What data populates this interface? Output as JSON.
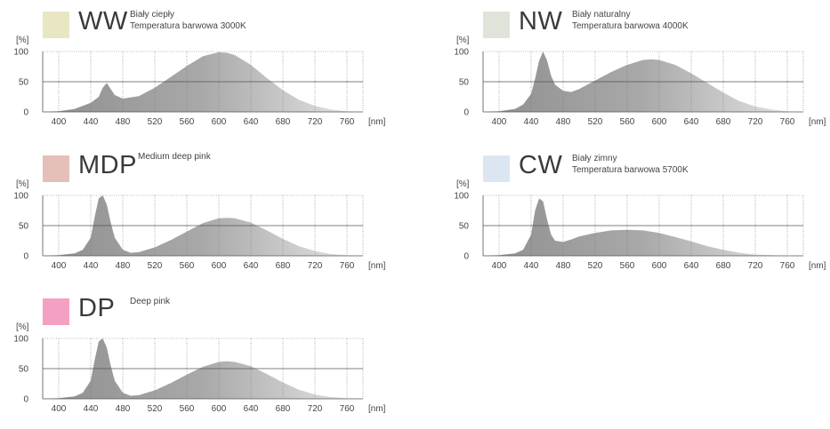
{
  "chart_data": [
    {
      "type": "area",
      "code": "WW",
      "description": [
        "Biały ciepły",
        "Temperatura barwowa 3000K"
      ],
      "swatch_color": "#e9e6c4",
      "ylabel": "[%]",
      "xlabel": "[nm]",
      "ylim": [
        0,
        100
      ],
      "xlim": [
        380,
        780
      ],
      "x_ticks": [
        400,
        440,
        480,
        520,
        560,
        600,
        640,
        680,
        720,
        760
      ],
      "y_ticks": [
        0,
        50,
        100
      ],
      "x": [
        380,
        400,
        420,
        440,
        450,
        455,
        460,
        465,
        470,
        480,
        500,
        520,
        540,
        560,
        580,
        600,
        610,
        620,
        640,
        660,
        680,
        700,
        720,
        740,
        760,
        780
      ],
      "y": [
        0,
        1,
        5,
        15,
        25,
        40,
        48,
        38,
        28,
        22,
        26,
        40,
        58,
        76,
        92,
        99,
        98,
        94,
        78,
        56,
        36,
        20,
        10,
        4,
        1,
        0
      ]
    },
    {
      "type": "area",
      "code": "NW",
      "description": [
        "Biały naturalny",
        "Temperatura barwowa 4000K"
      ],
      "swatch_color": "#e0e3d9",
      "ylabel": "[%]",
      "xlabel": "[nm]",
      "ylim": [
        0,
        100
      ],
      "xlim": [
        380,
        780
      ],
      "x_ticks": [
        400,
        440,
        480,
        520,
        560,
        600,
        640,
        680,
        720,
        760
      ],
      "y_ticks": [
        0,
        50,
        100
      ],
      "x": [
        380,
        400,
        420,
        430,
        440,
        445,
        450,
        455,
        460,
        465,
        470,
        480,
        490,
        500,
        520,
        540,
        560,
        580,
        590,
        600,
        620,
        640,
        660,
        680,
        700,
        720,
        740,
        760,
        780
      ],
      "y": [
        0,
        1,
        5,
        12,
        30,
        55,
        85,
        100,
        85,
        60,
        45,
        35,
        33,
        38,
        52,
        66,
        78,
        86,
        87,
        86,
        78,
        64,
        48,
        32,
        18,
        9,
        4,
        1,
        0
      ]
    },
    {
      "type": "area",
      "code": "MDP",
      "description": [
        "Medium deep pink"
      ],
      "swatch_color": "#e5bfba",
      "ylabel": "[%]",
      "xlabel": "[nm]",
      "ylim": [
        0,
        100
      ],
      "xlim": [
        380,
        780
      ],
      "x_ticks": [
        400,
        440,
        480,
        520,
        560,
        600,
        640,
        680,
        720,
        760
      ],
      "y_ticks": [
        0,
        50,
        100
      ],
      "x": [
        380,
        400,
        420,
        430,
        440,
        445,
        450,
        455,
        460,
        465,
        470,
        480,
        490,
        500,
        520,
        540,
        560,
        580,
        600,
        610,
        620,
        640,
        660,
        680,
        700,
        720,
        740,
        760,
        780
      ],
      "y": [
        0,
        1,
        4,
        10,
        30,
        65,
        95,
        100,
        85,
        55,
        30,
        10,
        5,
        6,
        14,
        26,
        40,
        54,
        62,
        63,
        62,
        55,
        42,
        28,
        16,
        8,
        3,
        1,
        0
      ]
    },
    {
      "type": "area",
      "code": "CW",
      "description": [
        "Biały zimny",
        "Temperatura barwowa 5700K"
      ],
      "swatch_color": "#dbe6f1",
      "ylabel": "[%]",
      "xlabel": "[nm]",
      "ylim": [
        0,
        100
      ],
      "xlim": [
        380,
        780
      ],
      "x_ticks": [
        400,
        440,
        480,
        520,
        560,
        600,
        640,
        680,
        720,
        760
      ],
      "y_ticks": [
        0,
        50,
        100
      ],
      "x": [
        380,
        400,
        420,
        430,
        440,
        445,
        450,
        455,
        460,
        465,
        470,
        480,
        490,
        500,
        520,
        540,
        560,
        580,
        600,
        620,
        640,
        660,
        680,
        700,
        720,
        740,
        760,
        780
      ],
      "y": [
        0,
        1,
        4,
        10,
        35,
        75,
        95,
        90,
        60,
        35,
        25,
        23,
        27,
        32,
        38,
        42,
        43,
        42,
        38,
        31,
        24,
        16,
        10,
        5,
        2,
        1,
        0,
        0
      ]
    },
    {
      "type": "area",
      "code": "DP",
      "description": [
        "Deep pink"
      ],
      "swatch_color": "#f4a0c4",
      "ylabel": "[%]",
      "xlabel": "[nm]",
      "ylim": [
        0,
        100
      ],
      "xlim": [
        380,
        780
      ],
      "x_ticks": [
        400,
        440,
        480,
        520,
        560,
        600,
        640,
        680,
        720,
        760
      ],
      "y_ticks": [
        0,
        50,
        100
      ],
      "x": [
        380,
        400,
        420,
        430,
        440,
        445,
        450,
        455,
        460,
        465,
        470,
        480,
        490,
        500,
        520,
        540,
        560,
        580,
        600,
        610,
        620,
        640,
        660,
        680,
        700,
        720,
        740,
        760,
        780
      ],
      "y": [
        0,
        1,
        4,
        10,
        30,
        65,
        95,
        100,
        85,
        55,
        30,
        10,
        5,
        6,
        14,
        26,
        40,
        53,
        61,
        62,
        61,
        54,
        41,
        27,
        15,
        7,
        3,
        1,
        0
      ]
    }
  ]
}
